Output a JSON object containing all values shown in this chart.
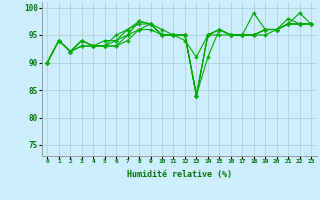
{
  "xlabel": "Humidité relative (%)",
  "background_color": "#cceeff",
  "grid_color": "#aacccc",
  "line_color": "#00aa00",
  "marker": "+",
  "xlim": [
    -0.5,
    23.5
  ],
  "ylim": [
    73,
    101
  ],
  "yticks": [
    75,
    80,
    85,
    90,
    95,
    100
  ],
  "xticks": [
    0,
    1,
    2,
    3,
    4,
    5,
    6,
    7,
    8,
    9,
    10,
    11,
    12,
    13,
    14,
    15,
    16,
    17,
    18,
    19,
    20,
    21,
    22,
    23
  ],
  "series": [
    [
      90,
      94,
      92,
      94,
      93,
      93,
      95,
      96,
      97.5,
      97,
      96,
      95,
      94,
      91,
      95,
      96,
      95,
      95,
      99,
      96,
      96,
      98,
      97,
      97
    ],
    [
      90,
      94,
      92,
      94,
      93,
      94,
      94,
      95,
      97.5,
      97,
      95,
      95,
      95,
      84,
      91,
      96,
      95,
      95,
      95,
      96,
      96,
      97,
      99,
      97
    ],
    [
      90,
      94,
      92,
      94,
      93,
      93,
      94,
      96,
      97,
      97,
      95,
      95,
      95,
      84,
      95,
      96,
      95,
      95,
      95,
      96,
      96,
      97,
      97,
      97
    ],
    [
      90,
      94,
      92,
      93,
      93,
      93,
      93,
      95,
      96,
      97,
      95,
      95,
      95,
      84,
      95,
      96,
      95,
      95,
      95,
      96,
      96,
      97,
      97,
      97
    ],
    [
      90,
      94,
      92,
      93,
      93,
      93,
      93,
      94,
      96,
      96,
      95,
      95,
      95,
      84,
      95,
      95,
      95,
      95,
      95,
      95,
      96,
      97,
      97,
      97
    ]
  ]
}
